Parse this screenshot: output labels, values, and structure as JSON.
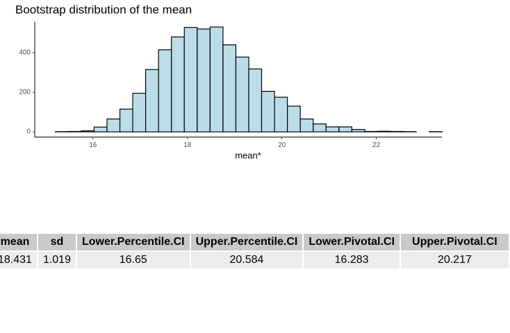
{
  "chart_data": {
    "type": "histogram",
    "title": "Bootstrap distribution of the mean",
    "x_label": "mean*",
    "bins": [
      15.205,
      15.478,
      15.751,
      16.024,
      16.297,
      16.57,
      16.842,
      17.115,
      17.388,
      17.661,
      17.934,
      18.207,
      18.48,
      18.753,
      19.026,
      19.299,
      19.571,
      19.844,
      20.117,
      20.39,
      20.663,
      20.936,
      21.209,
      21.482,
      21.755,
      22.028,
      22.3,
      22.573,
      22.846,
      23.119,
      23.392
    ],
    "values": [
      1,
      2,
      5,
      24,
      65,
      115,
      195,
      315,
      415,
      480,
      528,
      520,
      530,
      440,
      378,
      318,
      205,
      175,
      130,
      65,
      40,
      25,
      25,
      12,
      2,
      3,
      2,
      1,
      0,
      1
    ],
    "color": "#bcdde8",
    "edge_color": "#000000",
    "xlim": [
      14.796,
      23.801
    ],
    "xticks": [
      16,
      18,
      20,
      22
    ],
    "ylim": [
      -26.5,
      556.5
    ],
    "yticks": [
      0,
      200,
      400
    ],
    "grid": false
  },
  "table": {
    "columns": [
      "mean",
      "sd",
      "Lower.Percentile.CI",
      "Upper.Percentile.CI",
      "Lower.Pivotal.CI",
      "Upper.Pivotal.CI"
    ],
    "rows": [
      [
        18.431,
        1.019,
        16.65,
        20.584,
        16.283,
        20.217
      ]
    ]
  }
}
